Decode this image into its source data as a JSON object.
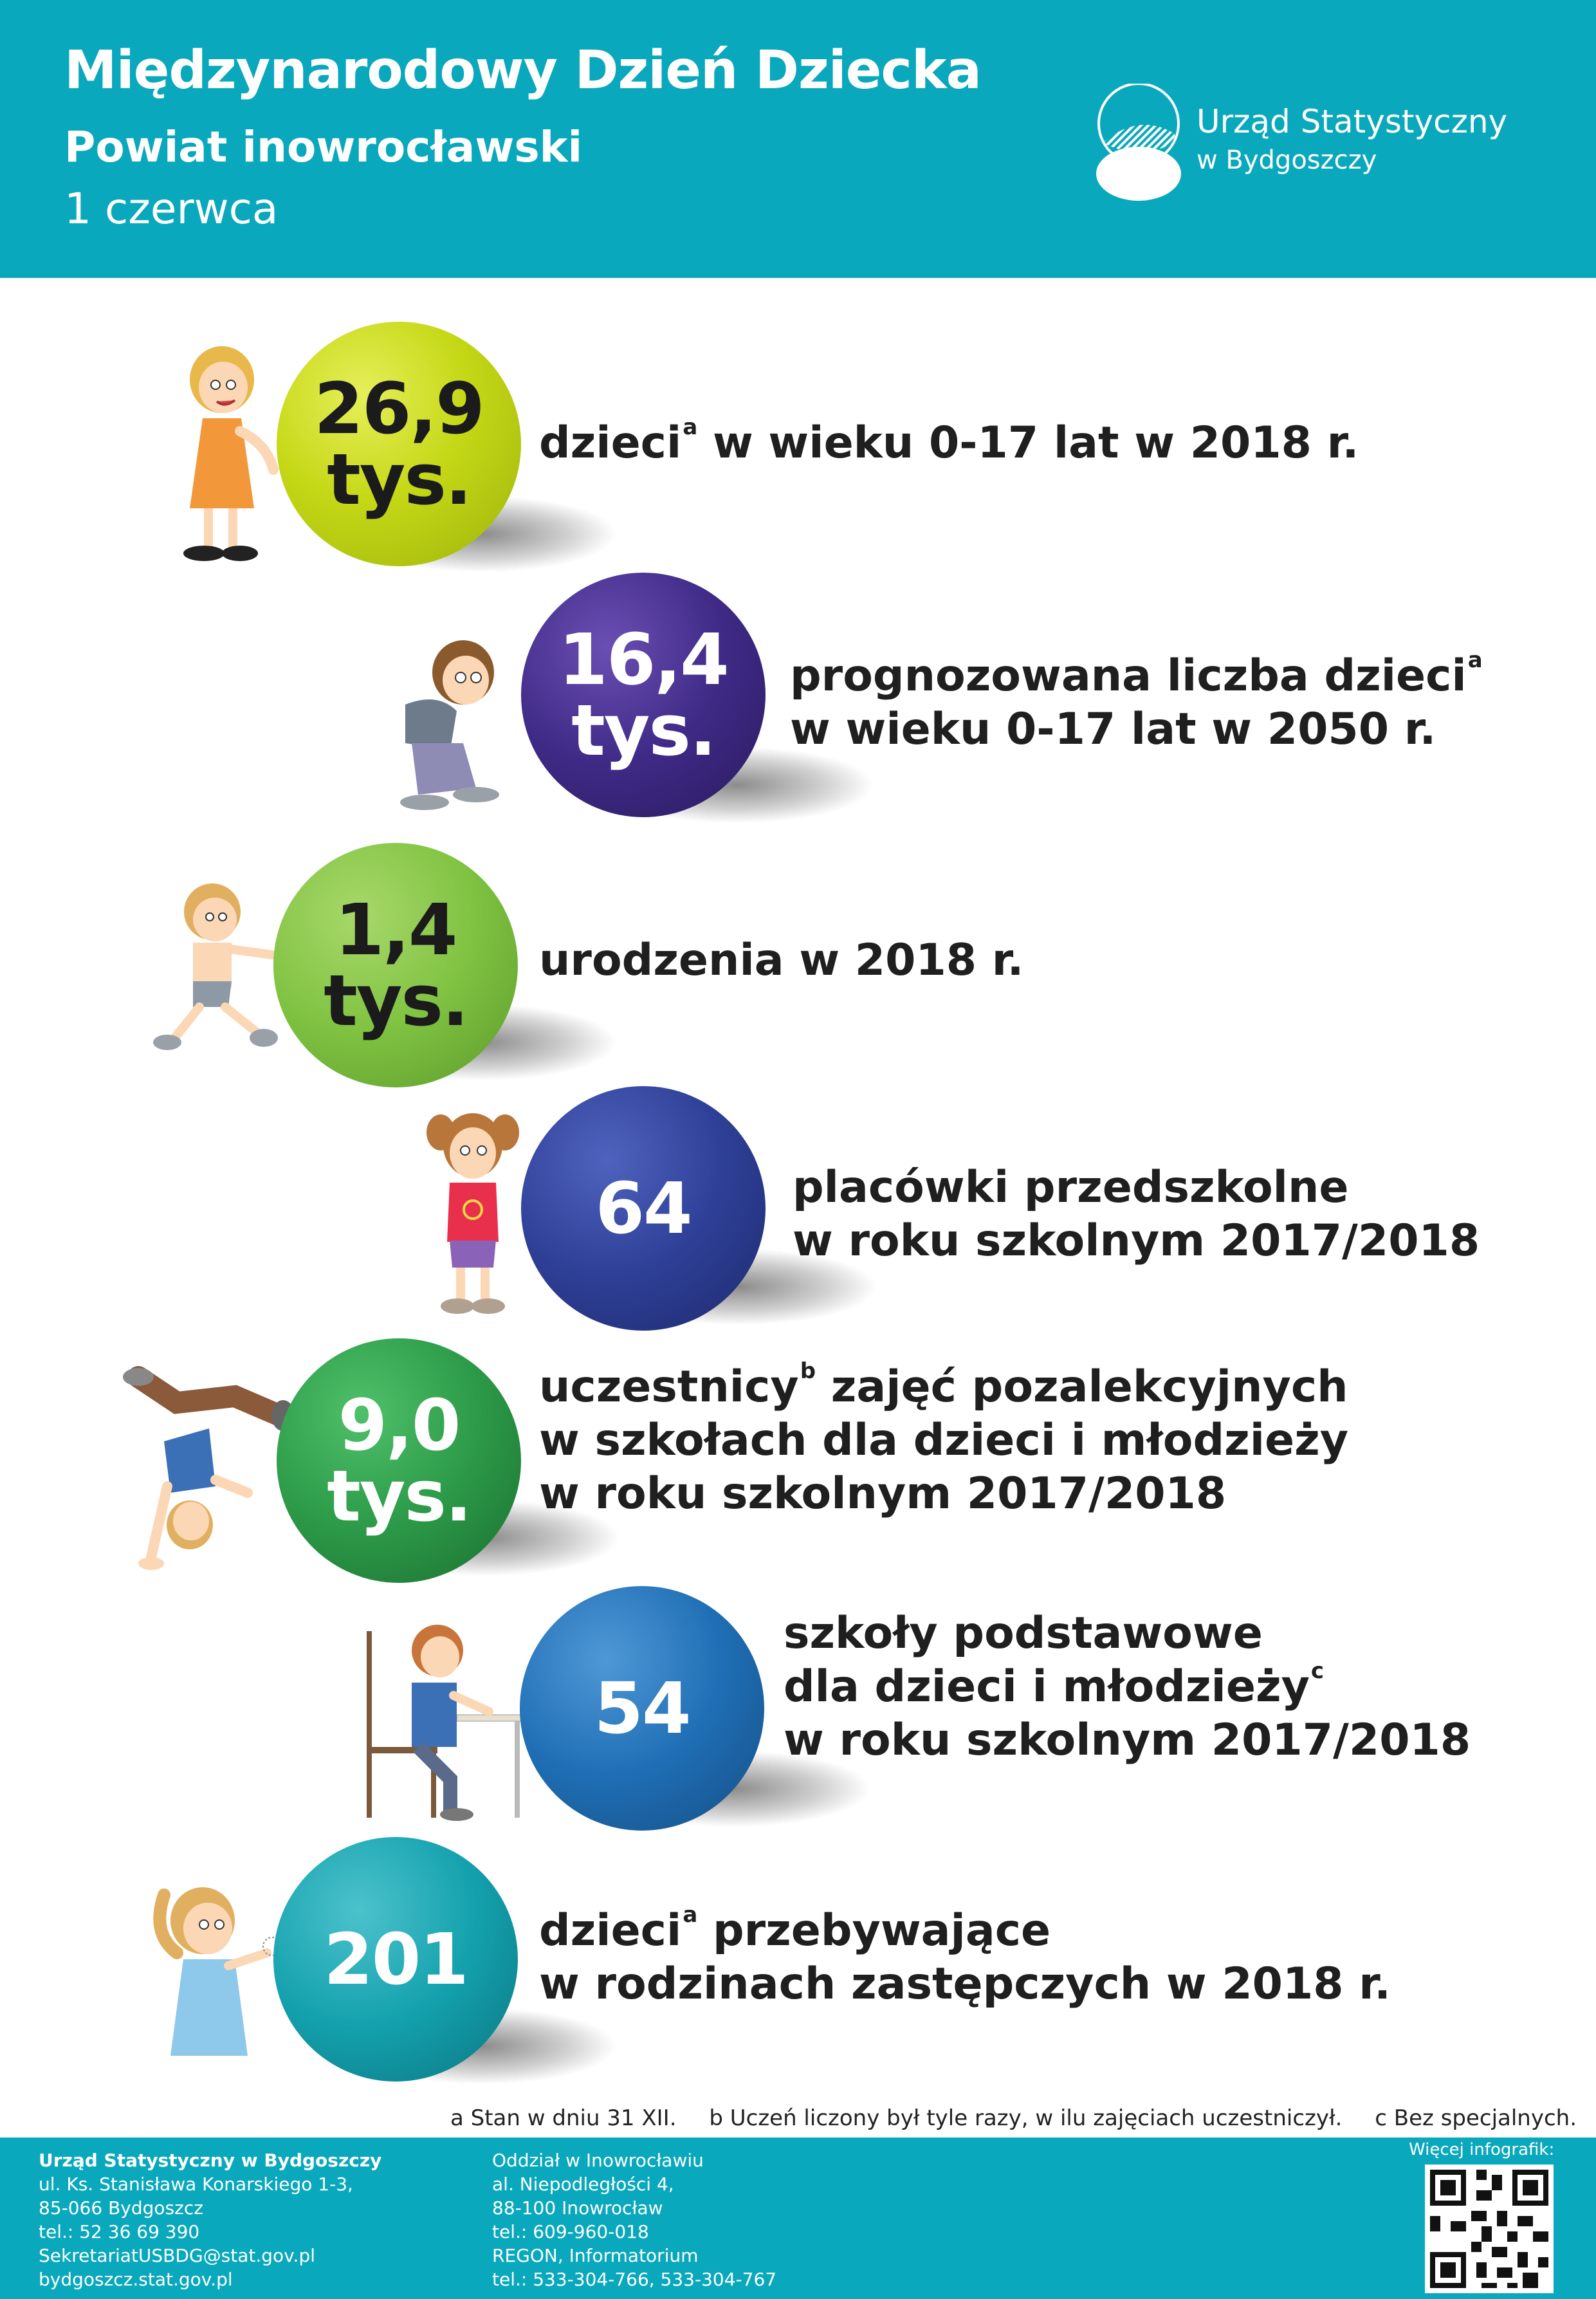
{
  "header": {
    "title": "Międzynarodowy Dzień Dziecka",
    "subtitle": "Powiat inowrocławski",
    "date": "1 czerwca",
    "logo_line1": "Urząd Statystyczny",
    "logo_line2": "w Bydgoszczy"
  },
  "stats": [
    {
      "value": "26,9",
      "unit": "tys.",
      "color": "#c5d816",
      "text_color": "#1b1b1b",
      "line1": "dzieci",
      "line1_sup": "a",
      "line1_rest": " w wieku 0-17 lat w 2018 r.",
      "line2": "",
      "line3": ""
    },
    {
      "value": "16,4",
      "unit": "tys.",
      "color": "#3f2a86",
      "text_color": "#ffffff",
      "line1": "prognozowana liczba dzieci",
      "line1_sup": "a",
      "line1_rest": "",
      "line2": "w wieku 0-17 lat w 2050 r.",
      "line3": ""
    },
    {
      "value": "1,4",
      "unit": "tys.",
      "color": "#7fc241",
      "text_color": "#1b1b1b",
      "line1": "urodzenia w 2018 r.",
      "line1_sup": "",
      "line1_rest": "",
      "line2": "",
      "line3": ""
    },
    {
      "value": "64",
      "unit": "",
      "color": "#2e3f96",
      "text_color": "#ffffff",
      "line1": "placówki przedszkolne",
      "line1_sup": "",
      "line1_rest": "",
      "line2": "w roku szkolnym 2017/2018",
      "line3": ""
    },
    {
      "value": "9,0",
      "unit": "tys.",
      "color": "#2c9a48",
      "text_color": "#ffffff",
      "line1": "uczestnicy",
      "line1_sup": "b",
      "line1_rest": " zajęć pozalekcyjnych",
      "line2": "w szkołach dla dzieci i młodzieży",
      "line3": "w roku szkolnym 2017/2018"
    },
    {
      "value": "54",
      "unit": "",
      "color": "#1f6eb5",
      "text_color": "#ffffff",
      "line1": "szkoły podstawowe",
      "line1_sup": "",
      "line1_rest": "",
      "line2": "dla dzieci i młodzieży",
      "line2_sup": "c",
      "line3": "w roku szkolnym 2017/2018"
    },
    {
      "value": "201",
      "unit": "",
      "color": "#13a1ad",
      "text_color": "#ffffff",
      "line1": "dzieci",
      "line1_sup": "a",
      "line1_rest": " przebywające",
      "line2": "w rodzinach zastępczych w 2018 r.",
      "line3": ""
    }
  ],
  "footnotes": {
    "a": "a Stan w dniu 31 XII.",
    "b": "b Uczeń liczony był tyle razy, w ilu zajęciach uczestniczył.",
    "c": "c Bez specjalnych."
  },
  "footer": {
    "office_name": "Urząd Statystyczny w Bydgoszczy",
    "office_street": "ul. Ks. Stanisława Konarskiego 1-3,",
    "office_city": "85-066 Bydgoszcz",
    "office_phone": "tel.: 52 36 69 390",
    "office_email": "SekretariatUSBDG@stat.gov.pl",
    "office_web": "bydgoszcz.stat.gov.pl",
    "branch_name": "Oddział w Inowrocławiu",
    "branch_street": "al. Niepodległości 4,",
    "branch_city": "88-100 Inowrocław",
    "branch_phone": "tel.: 609-960-018",
    "branch_regon": "REGON, Informatorium",
    "branch_phone2": "tel.: 533-304-766, 533-304-767",
    "more_label": "Więcej infografik:"
  }
}
